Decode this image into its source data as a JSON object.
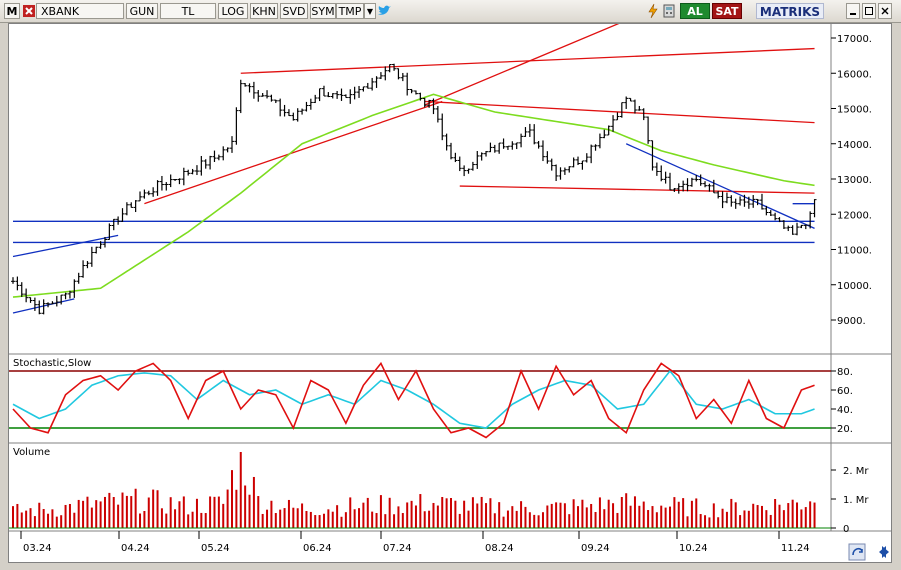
{
  "toolbar": {
    "menu_letter": "M",
    "symbol": "XBANK",
    "period": "GUN",
    "currency": "TL",
    "log": "LOG",
    "khn": "KHN",
    "svd": "SVD",
    "sym": "SYM",
    "tmp": "TMP",
    "buy": "AL",
    "sell": "SAT",
    "brand": "MATRIKS",
    "colors": {
      "buy": "#1f8a2e",
      "sell": "#a31515",
      "brand": "#1b2f7a"
    }
  },
  "price_panel": {
    "y_ticks": [
      "17000.",
      "16000.",
      "15000.",
      "14000.",
      "13000.",
      "12000.",
      "11000.",
      "10000.",
      "9000."
    ]
  },
  "stochastic_panel": {
    "title": "Stochastic,Slow",
    "y_ticks": [
      "80.",
      "60.",
      "40.",
      "20."
    ],
    "colors": {
      "k": "#e01010",
      "d": "#20c8e0",
      "upper": "#8b0000",
      "lower": "#008000"
    }
  },
  "volume_panel": {
    "title": "Volume",
    "y_ticks": [
      "2. Mr",
      "1. Mr",
      "0"
    ],
    "color": "#cc0000"
  },
  "x_axis": {
    "labels": [
      "03.24",
      "04.24",
      "05.24",
      "06.24",
      "07.24",
      "08.24",
      "09.24",
      "10.24",
      "11.24"
    ]
  },
  "chart_data": {
    "type": "ohlc",
    "months": [
      "03.24",
      "04.24",
      "05.24",
      "06.24",
      "07.24",
      "08.24",
      "09.24",
      "10.24",
      "11.24"
    ],
    "close_anchors": [
      [
        0,
        10100
      ],
      [
        6,
        9300
      ],
      [
        12,
        9700
      ],
      [
        18,
        10900
      ],
      [
        24,
        11900
      ],
      [
        28,
        12400
      ],
      [
        33,
        12800
      ],
      [
        40,
        13200
      ],
      [
        46,
        13600
      ],
      [
        50,
        14000
      ],
      [
        52,
        15800
      ],
      [
        58,
        15300
      ],
      [
        64,
        14700
      ],
      [
        70,
        15500
      ],
      [
        76,
        15200
      ],
      [
        82,
        15800
      ],
      [
        86,
        16200
      ],
      [
        92,
        15400
      ],
      [
        96,
        15000
      ],
      [
        98,
        14200
      ],
      [
        102,
        13200
      ],
      [
        106,
        13600
      ],
      [
        112,
        14000
      ],
      [
        118,
        14300
      ],
      [
        124,
        13200
      ],
      [
        130,
        13600
      ],
      [
        136,
        14500
      ],
      [
        140,
        15300
      ],
      [
        144,
        14700
      ],
      [
        146,
        13400
      ],
      [
        150,
        12800
      ],
      [
        156,
        13000
      ],
      [
        160,
        12600
      ],
      [
        164,
        12300
      ],
      [
        170,
        12300
      ],
      [
        174,
        11800
      ],
      [
        178,
        11400
      ],
      [
        180,
        11700
      ],
      [
        182,
        11900
      ],
      [
        183,
        12400
      ]
    ],
    "ma_anchors": [
      [
        0,
        9650
      ],
      [
        20,
        9900
      ],
      [
        40,
        11500
      ],
      [
        52,
        12600
      ],
      [
        66,
        14000
      ],
      [
        82,
        14800
      ],
      [
        96,
        15400
      ],
      [
        110,
        14900
      ],
      [
        136,
        14400
      ],
      [
        148,
        13800
      ],
      [
        160,
        13400
      ],
      [
        176,
        12950
      ],
      [
        184,
        12800
      ]
    ],
    "stochastic_k_anchors": [
      [
        0,
        40
      ],
      [
        4,
        20
      ],
      [
        8,
        15
      ],
      [
        12,
        55
      ],
      [
        16,
        70
      ],
      [
        20,
        75
      ],
      [
        24,
        60
      ],
      [
        28,
        80
      ],
      [
        32,
        88
      ],
      [
        36,
        70
      ],
      [
        40,
        30
      ],
      [
        44,
        70
      ],
      [
        48,
        80
      ],
      [
        52,
        40
      ],
      [
        56,
        60
      ],
      [
        60,
        55
      ],
      [
        64,
        20
      ],
      [
        68,
        70
      ],
      [
        72,
        60
      ],
      [
        76,
        25
      ],
      [
        80,
        65
      ],
      [
        84,
        88
      ],
      [
        88,
        50
      ],
      [
        92,
        80
      ],
      [
        96,
        40
      ],
      [
        100,
        15
      ],
      [
        104,
        20
      ],
      [
        108,
        10
      ],
      [
        112,
        25
      ],
      [
        116,
        80
      ],
      [
        120,
        40
      ],
      [
        124,
        85
      ],
      [
        128,
        55
      ],
      [
        132,
        70
      ],
      [
        136,
        30
      ],
      [
        140,
        15
      ],
      [
        144,
        60
      ],
      [
        148,
        88
      ],
      [
        152,
        75
      ],
      [
        156,
        30
      ],
      [
        160,
        50
      ],
      [
        164,
        25
      ],
      [
        168,
        70
      ],
      [
        172,
        30
      ],
      [
        176,
        20
      ],
      [
        180,
        60
      ],
      [
        183,
        65
      ]
    ],
    "stochastic_d_anchors": [
      [
        0,
        45
      ],
      [
        6,
        30
      ],
      [
        12,
        40
      ],
      [
        18,
        65
      ],
      [
        24,
        75
      ],
      [
        30,
        78
      ],
      [
        36,
        75
      ],
      [
        42,
        50
      ],
      [
        48,
        70
      ],
      [
        54,
        55
      ],
      [
        60,
        60
      ],
      [
        66,
        45
      ],
      [
        72,
        55
      ],
      [
        78,
        45
      ],
      [
        84,
        70
      ],
      [
        90,
        60
      ],
      [
        96,
        45
      ],
      [
        102,
        25
      ],
      [
        108,
        20
      ],
      [
        114,
        45
      ],
      [
        120,
        60
      ],
      [
        126,
        70
      ],
      [
        132,
        65
      ],
      [
        138,
        40
      ],
      [
        144,
        45
      ],
      [
        150,
        80
      ],
      [
        156,
        45
      ],
      [
        162,
        40
      ],
      [
        168,
        50
      ],
      [
        174,
        35
      ],
      [
        180,
        35
      ],
      [
        183,
        40
      ]
    ],
    "volume_anchors": [
      [
        0,
        0.6
      ],
      [
        10,
        0.7
      ],
      [
        20,
        0.9
      ],
      [
        30,
        1.0
      ],
      [
        40,
        0.8
      ],
      [
        48,
        0.9
      ],
      [
        52,
        2.7
      ],
      [
        56,
        1.0
      ],
      [
        64,
        0.7
      ],
      [
        80,
        0.8
      ],
      [
        96,
        0.9
      ],
      [
        104,
        0.8
      ],
      [
        120,
        0.7
      ],
      [
        140,
        0.9
      ],
      [
        150,
        0.8
      ],
      [
        160,
        0.7
      ],
      [
        170,
        0.8
      ],
      [
        180,
        0.9
      ],
      [
        183,
        1.2
      ]
    ],
    "trend_lines": [
      {
        "color": "red",
        "p1": [
          52,
          16000
        ],
        "p2": [
          183,
          16700
        ]
      },
      {
        "color": "red",
        "p1": [
          30,
          12300
        ],
        "p2": [
          98,
          15200
        ]
      },
      {
        "color": "red",
        "p1": [
          94,
          15100
        ],
        "p2": [
          140,
          17500
        ]
      },
      {
        "color": "red",
        "p1": [
          94,
          15200
        ],
        "p2": [
          183,
          14600
        ]
      },
      {
        "color": "red",
        "p1": [
          102,
          12800
        ],
        "p2": [
          183,
          12600
        ]
      },
      {
        "color": "blue",
        "p1": [
          0,
          11800
        ],
        "p2": [
          183,
          11800
        ]
      },
      {
        "color": "blue",
        "p1": [
          0,
          11200
        ],
        "p2": [
          183,
          11200
        ]
      },
      {
        "color": "blue",
        "p1": [
          0,
          10800
        ],
        "p2": [
          24,
          11400
        ]
      },
      {
        "color": "blue",
        "p1": [
          0,
          9200
        ],
        "p2": [
          14,
          9600
        ]
      },
      {
        "color": "blue",
        "p1": [
          140,
          14000
        ],
        "p2": [
          183,
          11600
        ]
      },
      {
        "color": "blue",
        "p1": [
          178,
          12300
        ],
        "p2": [
          183,
          12300
        ]
      }
    ]
  }
}
